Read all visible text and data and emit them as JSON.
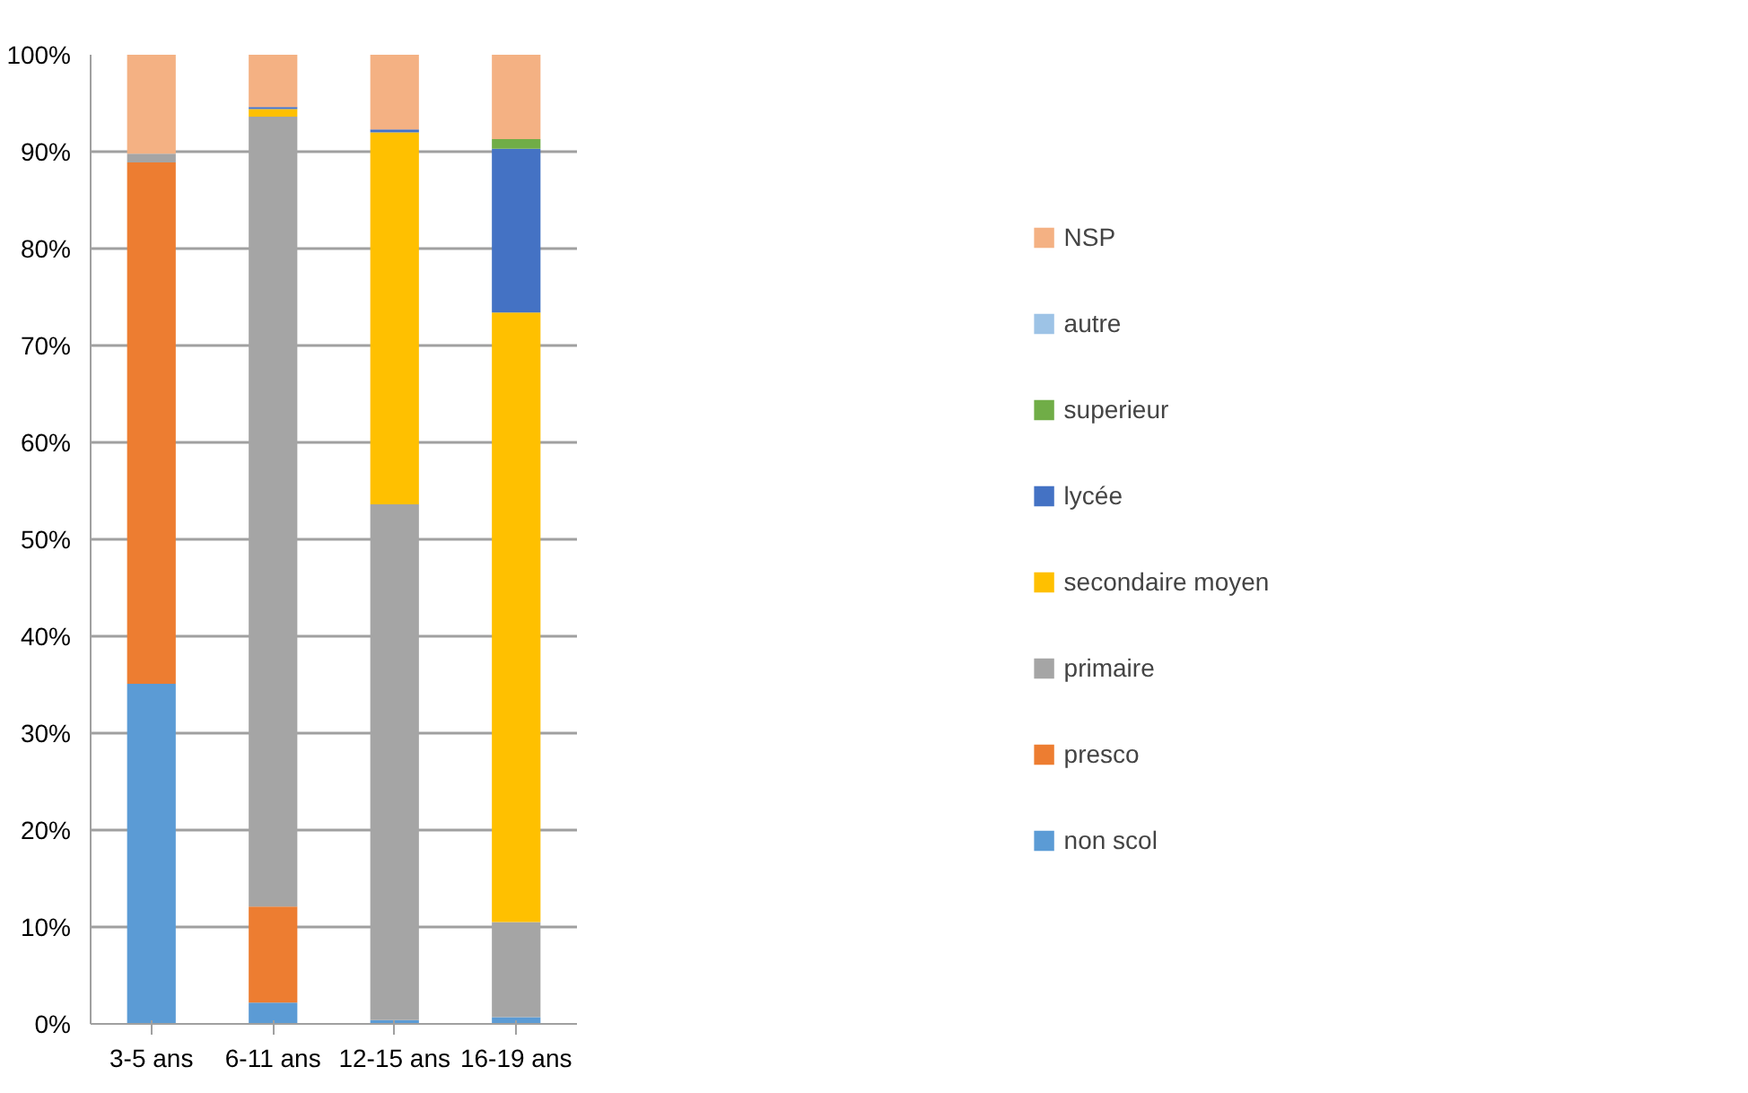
{
  "chart_data": {
    "type": "bar",
    "stacked": true,
    "categories": [
      "3-5 ans",
      "6-11 ans",
      "12-15 ans",
      "16-19 ans"
    ],
    "series": [
      {
        "name": "non scol",
        "color": "#5b9bd5",
        "values": [
          35.1,
          2.2,
          0.4,
          0.7
        ]
      },
      {
        "name": "presco",
        "color": "#ed7d31",
        "values": [
          53.8,
          9.9,
          0,
          0
        ]
      },
      {
        "name": "primaire",
        "color": "#a5a5a5",
        "values": [
          0.9,
          81.5,
          53.2,
          9.8
        ]
      },
      {
        "name": "secondaire moyen",
        "color": "#ffc000",
        "values": [
          0,
          0.8,
          38.4,
          62.9
        ]
      },
      {
        "name": "lycée",
        "color": "#4472c4",
        "values": [
          0,
          0.2,
          0.3,
          16.9
        ]
      },
      {
        "name": "superieur",
        "color": "#70ad47",
        "values": [
          0,
          0,
          0,
          1.0
        ]
      },
      {
        "name": "autre",
        "color": "#9dc3e6",
        "values": [
          0,
          0,
          0,
          0
        ]
      },
      {
        "name": "NSP",
        "color": "#f4b183",
        "values": [
          10.2,
          5.4,
          7.7,
          8.7
        ]
      }
    ],
    "ylim": [
      0,
      100
    ],
    "yticks": [
      {
        "value": 0,
        "label": "0%"
      },
      {
        "value": 10,
        "label": "10%"
      },
      {
        "value": 20,
        "label": "20%"
      },
      {
        "value": 30,
        "label": "30%"
      },
      {
        "value": 40,
        "label": "40%"
      },
      {
        "value": 50,
        "label": "50%"
      },
      {
        "value": 60,
        "label": "60%"
      },
      {
        "value": 70,
        "label": "70%"
      },
      {
        "value": 80,
        "label": "80%"
      },
      {
        "value": 90,
        "label": "90%"
      },
      {
        "value": 100,
        "label": "100%"
      }
    ],
    "grid": "y",
    "legend": "right"
  }
}
